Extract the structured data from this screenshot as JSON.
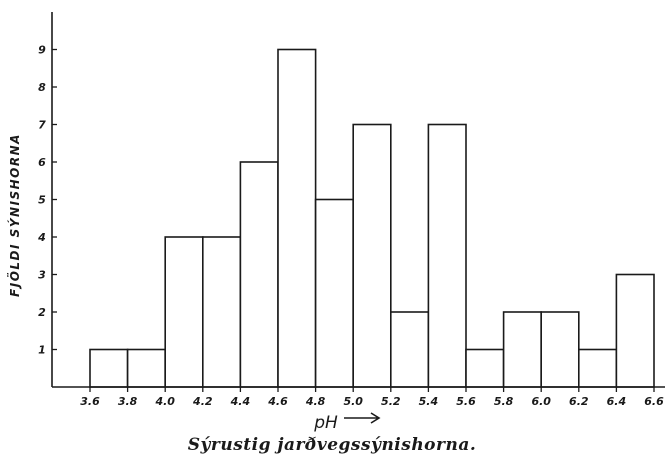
{
  "chart_data": {
    "type": "bar",
    "title": "Sýrustig jarðvegssýnishorna.",
    "ylabel": "FJÖLDI SÝNISHORNA",
    "xlabel": "pH",
    "x_tick_labels": [
      "3.6",
      "3.8",
      "4.0",
      "4.2",
      "4.4",
      "4.6",
      "4.8",
      "5.0",
      "5.2",
      "5.4",
      "5.6",
      "5.8",
      "6.0",
      "6.2",
      "6.4",
      "6.6"
    ],
    "y_tick_labels": [
      "1",
      "2",
      "3",
      "4",
      "5",
      "6",
      "7",
      "8",
      "9"
    ],
    "ylim": [
      0,
      10
    ],
    "bins": [
      {
        "from": "3.6",
        "to": "3.8",
        "value": 1
      },
      {
        "from": "3.8",
        "to": "4.0",
        "value": 1
      },
      {
        "from": "4.0",
        "to": "4.2",
        "value": 4
      },
      {
        "from": "4.2",
        "to": "4.4",
        "value": 4
      },
      {
        "from": "4.4",
        "to": "4.6",
        "value": 6
      },
      {
        "from": "4.6",
        "to": "4.8",
        "value": 9
      },
      {
        "from": "4.8",
        "to": "5.0",
        "value": 5
      },
      {
        "from": "5.0",
        "to": "5.2",
        "value": 7
      },
      {
        "from": "5.2",
        "to": "5.4",
        "value": 2
      },
      {
        "from": "5.4",
        "to": "5.6",
        "value": 7
      },
      {
        "from": "5.6",
        "to": "5.8",
        "value": 1
      },
      {
        "from": "5.8",
        "to": "6.0",
        "value": 2
      },
      {
        "from": "6.0",
        "to": "6.2",
        "value": 2
      },
      {
        "from": "6.2",
        "to": "6.4",
        "value": 1
      },
      {
        "from": "6.4",
        "to": "6.6",
        "value": 3
      }
    ]
  }
}
